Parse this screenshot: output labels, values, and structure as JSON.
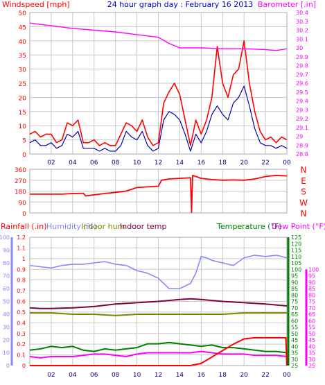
{
  "chart_data": [
    {
      "type": "line",
      "title": "24 hour graph day : February 16 2013",
      "ylabel_left": "Windspeed [mph]",
      "ylabel_right": "Barometer [.in]",
      "ylim_left": [
        0,
        50
      ],
      "yticks_left": [
        "0",
        "5",
        "10",
        "15",
        "20",
        "25",
        "30",
        "35",
        "40",
        "45",
        "50"
      ],
      "ylim_right": [
        28.8,
        30.4
      ],
      "yticks_right": [
        "28.8",
        "28.9",
        "29",
        "29.1",
        "29.2",
        "29.3",
        "29.4",
        "29.5",
        "29.6",
        "29.7",
        "29.8",
        "29.9",
        "30",
        "30.1",
        "30.2",
        "30.3",
        "30.4"
      ],
      "x_ticks": [
        "02",
        "04",
        "06",
        "08",
        "10",
        "12",
        "14",
        "16",
        "18",
        "20",
        "22",
        "00"
      ],
      "xlim_hours": [
        0,
        24
      ],
      "colors": {
        "gust": "#ff0000",
        "average": "#0000aa",
        "barometer": "#ff00ff",
        "grid": "#c8c8c8"
      },
      "series": [
        {
          "name": "",
          "color": "#ff0000",
          "x": [
            0,
            0.5,
            1,
            1.5,
            2,
            2.5,
            3,
            3.5,
            4,
            4.5,
            5,
            5.5,
            6,
            6.5,
            7,
            7.5,
            8,
            8.5,
            9,
            9.5,
            10,
            10.5,
            11,
            11.5,
            12,
            12.5,
            13,
            13.5,
            14,
            14.5,
            15,
            15.5,
            16,
            16.5,
            17,
            17.5,
            18,
            18.5,
            19,
            19.5,
            20,
            20.5,
            21,
            21.5,
            22,
            22.5,
            23,
            23.5,
            24
          ],
          "values": [
            7,
            8,
            6,
            7,
            7,
            4,
            5,
            11,
            10,
            12,
            4,
            4,
            5,
            3,
            4,
            3,
            3,
            7,
            11,
            10,
            8,
            12,
            6,
            3,
            4,
            18,
            22,
            25,
            21,
            12,
            3,
            12,
            7,
            12,
            20,
            38,
            25,
            20,
            28,
            30,
            40,
            25,
            15,
            8,
            5,
            6,
            4,
            6,
            5
          ]
        },
        {
          "name": "",
          "color": "#0000aa",
          "x": [
            0,
            0.5,
            1,
            1.5,
            2,
            2.5,
            3,
            3.5,
            4,
            4.5,
            5,
            5.5,
            6,
            6.5,
            7,
            7.5,
            8,
            8.5,
            9,
            9.5,
            10,
            10.5,
            11,
            11.5,
            12,
            12.5,
            13,
            13.5,
            14,
            14.5,
            15,
            15.5,
            16,
            16.5,
            17,
            17.5,
            18,
            18.5,
            19,
            19.5,
            20,
            20.5,
            21,
            21.5,
            22,
            22.5,
            23,
            23.5,
            24
          ],
          "values": [
            4,
            5,
            3,
            3,
            4,
            2,
            3,
            7,
            6,
            8,
            2,
            2,
            2,
            1,
            2,
            1,
            1,
            3,
            8,
            6,
            5,
            8,
            3,
            1,
            2,
            12,
            15,
            14,
            12,
            7,
            1,
            7,
            4,
            8,
            14,
            17,
            14,
            12,
            18,
            20,
            24,
            17,
            9,
            4,
            3,
            3,
            2,
            3,
            2
          ]
        },
        {
          "name": "",
          "color": "#ff00ff",
          "axis": "right",
          "x": [
            0,
            2,
            4,
            6,
            8,
            10,
            12,
            13,
            14,
            16,
            18,
            20,
            22,
            23,
            24
          ],
          "values": [
            30.28,
            30.25,
            30.22,
            30.2,
            30.18,
            30.15,
            30.12,
            30.05,
            30.0,
            30.0,
            29.99,
            29.99,
            29.98,
            29.97,
            29.99
          ]
        }
      ]
    },
    {
      "type": "line",
      "title": "",
      "ylim": [
        0,
        360
      ],
      "yticks_left": [
        "0",
        "90",
        "180",
        "270",
        "360"
      ],
      "yticks_right": [
        "N",
        "W",
        "S",
        "E",
        "N"
      ],
      "x_ticks": [
        "02",
        "04",
        "06",
        "08",
        "10",
        "12",
        "14",
        "16",
        "18",
        "20",
        "22",
        "00"
      ],
      "xlim_hours": [
        0,
        24
      ],
      "series": [
        {
          "name": "",
          "color": "#ff0000",
          "x": [
            0,
            2,
            3,
            4,
            5,
            5.2,
            6,
            7,
            8,
            9,
            9.5,
            10,
            11,
            12,
            12.3,
            13,
            14,
            15,
            15.1,
            15.2,
            16,
            17,
            18,
            19,
            20,
            21,
            22,
            23,
            24
          ],
          "values": [
            155,
            155,
            155,
            160,
            162,
            140,
            150,
            160,
            170,
            180,
            195,
            210,
            215,
            220,
            270,
            280,
            285,
            290,
            5,
            310,
            285,
            275,
            270,
            272,
            270,
            280,
            300,
            310,
            305
          ]
        }
      ]
    },
    {
      "type": "line",
      "title": "",
      "legend": [
        "Rainfall (.in)",
        "Humidity (%)",
        "Indoor hum",
        "Indoor temp",
        "Temperature (°F)",
        "Dew Point (°F)"
      ],
      "ylim_rain": [
        0,
        1.2
      ],
      "yticks_rain": [
        "0",
        "0.1",
        "0.2",
        "0.3",
        "0.4",
        "0.5",
        "0.6",
        "0.7",
        "0.8",
        "0.9",
        "1",
        "1.1",
        "1.2"
      ],
      "ylim_humidity": [
        0,
        100
      ],
      "yticks_humidity": [
        "0",
        "10",
        "20",
        "30",
        "40",
        "50",
        "60",
        "70",
        "80",
        "90",
        "100"
      ],
      "ylim_temp": [
        25,
        125
      ],
      "yticks_temp": [
        "25",
        "30",
        "35",
        "40",
        "45",
        "50",
        "55",
        "60",
        "65",
        "70",
        "75",
        "80",
        "85",
        "90",
        "95",
        "100",
        "105",
        "110",
        "115",
        "120",
        "125"
      ],
      "yticks_dew": [
        "25",
        "30",
        "35",
        "40",
        "45",
        "50",
        "55",
        "60",
        "65",
        "70",
        "75",
        "80",
        "85",
        "90",
        "95",
        "100"
      ],
      "x_ticks": [
        "02",
        "04",
        "06",
        "08",
        "10",
        "12",
        "14",
        "16",
        "18",
        "20",
        "22",
        "00"
      ],
      "xlim_hours": [
        0,
        24
      ],
      "colors": {
        "rainfall": "#ff0000",
        "humidity": "#8888ff",
        "indoor_hum": "#808000",
        "indoor_temp": "#800040",
        "temperature": "#008000",
        "dew_point": "#ff00ff",
        "grid": "#c8c8c8"
      },
      "series": [
        {
          "name": "Rainfall (.in)",
          "color": "#ff0000",
          "x": [
            0,
            15,
            16,
            17,
            18,
            19,
            20,
            21,
            22,
            23,
            23.9,
            24
          ],
          "values": [
            0.0,
            0.0,
            0.02,
            0.08,
            0.14,
            0.2,
            0.25,
            0.26,
            0.26,
            0.26,
            0.26,
            0.0
          ]
        },
        {
          "name": "Humidity (%)",
          "color": "#8888ff",
          "x": [
            0,
            1,
            2,
            3,
            4,
            5,
            6,
            7,
            8,
            9,
            10,
            11,
            12,
            13,
            14,
            15,
            15.5,
            16,
            16.5,
            17,
            18,
            19,
            20,
            21,
            22,
            23,
            24
          ],
          "values": [
            78,
            77,
            76,
            78,
            79,
            79,
            80,
            81,
            79,
            78,
            74,
            72,
            68,
            60,
            60,
            64,
            72,
            85,
            84,
            82,
            80,
            78,
            84,
            86,
            85,
            86,
            84
          ]
        },
        {
          "name": "Indoor hum",
          "color": "#808000",
          "x": [
            0,
            2,
            4,
            6,
            8,
            10,
            12,
            14,
            16,
            18,
            20,
            22,
            24
          ],
          "values": [
            41,
            41,
            40,
            40,
            39,
            40,
            40,
            40,
            40,
            40,
            41,
            41,
            41
          ]
        },
        {
          "name": "Indoor temp",
          "color": "#800040",
          "x": [
            0,
            1,
            2,
            4,
            6,
            8,
            10,
            12,
            14,
            15,
            16,
            18,
            20,
            22,
            24
          ],
          "values": [
            70,
            69.5,
            69.5,
            70,
            71,
            73,
            74,
            75,
            76.5,
            77,
            76.5,
            75,
            74,
            73,
            71.5
          ]
        },
        {
          "name": "Temperature (°F)",
          "color": "#008000",
          "x": [
            0,
            1,
            2,
            3,
            4,
            5,
            6,
            7,
            8,
            9,
            10,
            11,
            12,
            13,
            14,
            15,
            16,
            17,
            18,
            19,
            20,
            21,
            22,
            23,
            24
          ],
          "values": [
            37,
            38,
            40,
            39,
            40,
            37,
            36,
            38,
            37,
            38,
            39,
            42,
            42,
            43,
            42,
            41,
            40,
            41,
            39,
            39,
            38,
            37,
            36,
            36,
            35
          ]
        },
        {
          "name": "Dew Point (°F)",
          "color": "#ff00ff",
          "x": [
            0,
            1,
            2,
            3,
            4,
            5,
            6,
            7,
            8,
            9,
            10,
            11,
            12,
            13,
            14,
            15,
            16,
            17,
            18,
            19,
            20,
            21,
            22,
            23,
            24
          ],
          "values": [
            32,
            31,
            32,
            32,
            32,
            33,
            34,
            34,
            33,
            32,
            34,
            35,
            35,
            35,
            35,
            35,
            36,
            35,
            34,
            34,
            34,
            33,
            33,
            33,
            32
          ]
        }
      ]
    }
  ]
}
